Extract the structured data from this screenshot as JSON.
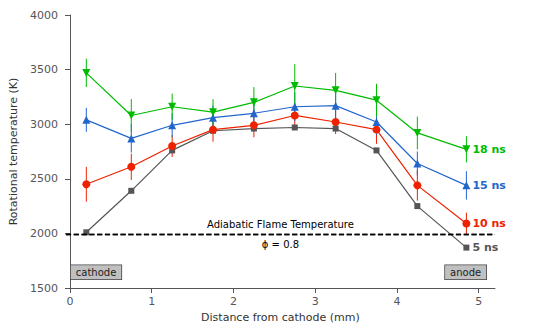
{
  "chart_data": {
    "type": "line",
    "x": [
      0.2,
      0.75,
      1.25,
      1.75,
      2.25,
      2.75,
      3.25,
      3.75,
      4.25,
      4.85
    ],
    "series": [
      {
        "name": "5 ns",
        "color": "#555555",
        "marker": "square",
        "values": [
          2010,
          2390,
          2760,
          2940,
          2960,
          2970,
          2960,
          2760,
          2250,
          1870
        ]
      },
      {
        "name": "10 ns",
        "color": "#ee2200",
        "marker": "circle",
        "values": [
          2450,
          2610,
          2800,
          2950,
          2990,
          3080,
          3020,
          2950,
          2440,
          2090
        ],
        "yerr": [
          160,
          120,
          100,
          110,
          110,
          110,
          110,
          130,
          140,
          100
        ]
      },
      {
        "name": "15 ns",
        "color": "#2266cc",
        "marker": "triangle-up",
        "values": [
          3040,
          2870,
          2990,
          3060,
          3100,
          3160,
          3170,
          3020,
          2640,
          2440
        ],
        "yerr": [
          110,
          130,
          110,
          110,
          130,
          130,
          120,
          120,
          110,
          130
        ]
      },
      {
        "name": "18 ns",
        "color": "#00bb00",
        "marker": "triangle-down",
        "values": [
          3470,
          3080,
          3160,
          3110,
          3200,
          3350,
          3310,
          3220,
          2920,
          2770
        ],
        "yerr": [
          130,
          150,
          120,
          120,
          140,
          200,
          160,
          150,
          150,
          120
        ]
      }
    ],
    "hlines": [
      {
        "y": 1990,
        "color": "#000000",
        "line_style": "dashed",
        "labels": [
          "Adiabatic Flame Temperature",
          "ϕ = 0.8"
        ]
      }
    ],
    "annotations": [
      "cathode",
      "anode"
    ],
    "xlabel": "Distance from cathode (mm)",
    "ylabel": "Rotational temperature (K)",
    "xlim": [
      -0.05,
      5.2
    ],
    "xticks": [
      0,
      1,
      2,
      3,
      4,
      5
    ],
    "ylim": [
      1500,
      4000
    ],
    "yticks": [
      1500,
      2000,
      2500,
      3000,
      3500,
      4000
    ],
    "grid": false
  }
}
